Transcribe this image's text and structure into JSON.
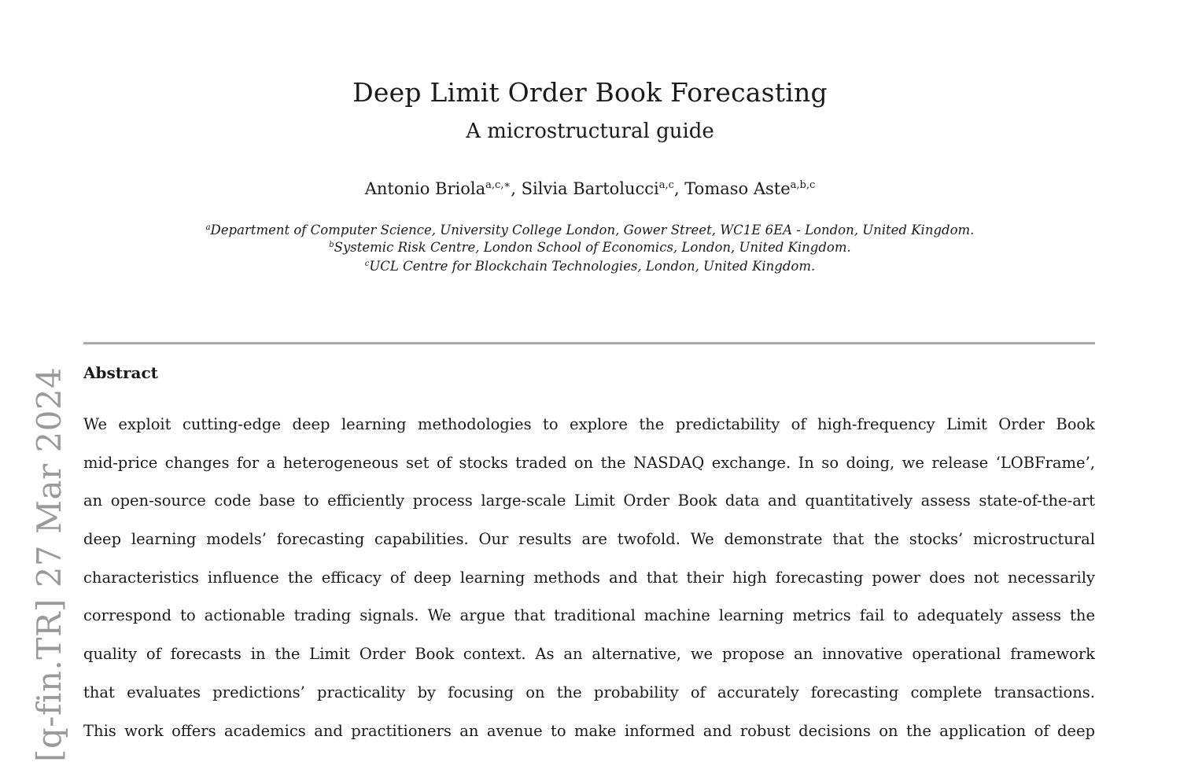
{
  "paper": {
    "title": "Deep Limit Order Book Forecasting",
    "subtitle": "A microstructural guide",
    "authors": [
      {
        "name": "Antonio Briola",
        "sup": "a,c,∗"
      },
      {
        "name": "Silvia Bartolucci",
        "sup": "a,c"
      },
      {
        "name": "Tomaso Aste",
        "sup": "a,b,c"
      }
    ],
    "affiliations": [
      {
        "mark": "a",
        "text": "Department of Computer Science, University College London, Gower Street, WC1E 6EA - London, United Kingdom."
      },
      {
        "mark": "b",
        "text": "Systemic Risk Centre, London School of Economics, London, United Kingdom."
      },
      {
        "mark": "c",
        "text": "UCL Centre for Blockchain Technologies, London, United Kingdom."
      }
    ],
    "abstract_heading": "Abstract",
    "abstract_lines": [
      "We exploit cutting-edge deep learning methodologies to explore the predictability of high-frequency Limit Order Book",
      "mid-price changes for a heterogeneous set of stocks traded on the NASDAQ exchange. In so doing, we release ‘LOBFrame’,",
      "an open-source code base to efficiently process large-scale Limit Order Book data and quantitatively assess state-of-the-art",
      "deep learning models’ forecasting capabilities. Our results are twofold. We demonstrate that the stocks’ microstructural",
      "characteristics influence the efficacy of deep learning methods and that their high forecasting power does not necessarily",
      "correspond to actionable trading signals. We argue that traditional machine learning metrics fail to adequately assess the",
      "quality of forecasts in the Limit Order Book context. As an alternative, we propose an innovative operational framework",
      "that evaluates predictions’ practicality by focusing on the probability of accurately forecasting complete transactions.",
      "This work offers academics and practitioners an avenue to make informed and robust decisions on the application of deep"
    ]
  },
  "arxiv_stamp": "[q-fin.TR]  27 Mar 2024"
}
